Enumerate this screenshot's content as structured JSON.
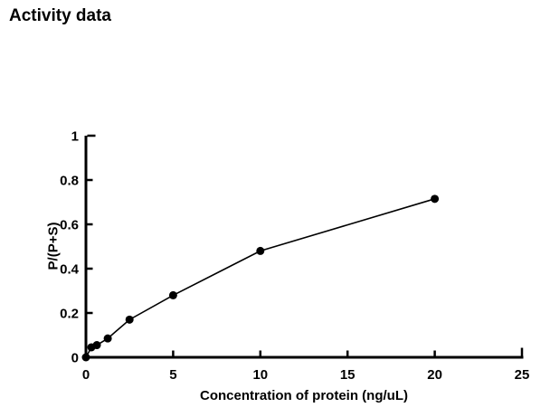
{
  "title": "Activity data",
  "chart_data": {
    "type": "line",
    "title": "Activity data",
    "x": [
      0,
      0.3125,
      0.625,
      1.25,
      2.5,
      5,
      10,
      20
    ],
    "y": [
      0,
      0.045,
      0.055,
      0.085,
      0.17,
      0.28,
      0.48,
      0.715
    ],
    "xlabel": "Concentration of protein (ng/uL)",
    "ylabel": "P/(P+S)",
    "xlim": [
      0,
      25
    ],
    "ylim": [
      0,
      1
    ],
    "xticks": [
      0,
      5,
      10,
      15,
      20,
      25
    ],
    "yticks": [
      0,
      0.2,
      0.4,
      0.6,
      0.8,
      1
    ],
    "grid": false,
    "legend": null,
    "marker": "filled-circle",
    "colors": {
      "line": "#000000",
      "marker": "#000000",
      "text": "#000000",
      "background": "#ffffff"
    }
  }
}
